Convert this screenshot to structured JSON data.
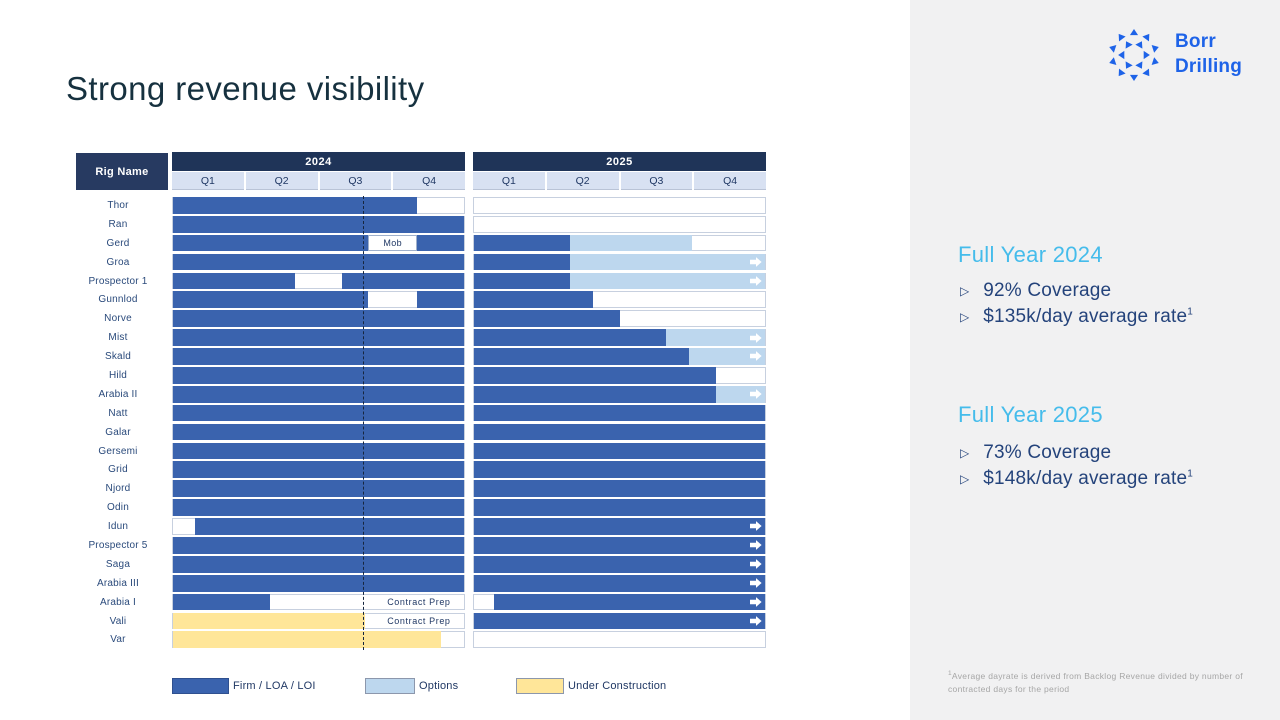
{
  "slide": {
    "title": "Strong revenue visibility"
  },
  "logo": {
    "brand_line1": "Borr",
    "brand_line2": "Drilling",
    "color": "#1E63E8"
  },
  "colors": {
    "firm": "#3A63AE",
    "option": "#BDD7EE",
    "under_construction": "#FFE699",
    "year_bar": "#1F3458",
    "quarter_bg": "#D8E1F2",
    "heading_blue": "#45BCEB",
    "bullet_navy": "#24437B",
    "panel_bg": "#F1F1F2"
  },
  "chart_data": {
    "type": "gantt",
    "rig_header": "Rig Name",
    "years": [
      {
        "label": "2024",
        "quarters": [
          "Q1",
          "Q2",
          "Q3",
          "Q4"
        ]
      },
      {
        "label": "2025",
        "quarters": [
          "Q1",
          "Q2",
          "Q3",
          "Q4"
        ]
      }
    ],
    "today_marker": {
      "year": "2024",
      "pct": 65
    },
    "legend": [
      {
        "label": "Firm / LOA / LOI",
        "type": "firm"
      },
      {
        "label": "Options",
        "type": "opt"
      },
      {
        "label": "Under Construction",
        "type": "uc"
      }
    ],
    "rows": [
      {
        "name": "Thor",
        "y2024": [
          {
            "t": "firm",
            "a": 0,
            "b": 84
          }
        ],
        "y2025": [],
        "arrow": false
      },
      {
        "name": "Ran",
        "y2024": [
          {
            "t": "firm",
            "a": 0,
            "b": 100
          }
        ],
        "y2025": [],
        "arrow": false
      },
      {
        "name": "Gerd",
        "y2024": [
          {
            "t": "firm",
            "a": 0,
            "b": 67
          },
          {
            "t": "box",
            "a": 67,
            "b": 84,
            "label": "Mob"
          },
          {
            "t": "firm",
            "a": 84,
            "b": 100
          }
        ],
        "y2025": [
          {
            "t": "firm",
            "a": 0,
            "b": 33
          },
          {
            "t": "opt",
            "a": 33,
            "b": 75
          }
        ],
        "arrow": false
      },
      {
        "name": "Groa",
        "y2024": [
          {
            "t": "firm",
            "a": 0,
            "b": 100
          }
        ],
        "y2025": [
          {
            "t": "firm",
            "a": 0,
            "b": 33
          },
          {
            "t": "opt",
            "a": 33,
            "b": 100
          }
        ],
        "arrow": true
      },
      {
        "name": "Prospector 1",
        "y2024": [
          {
            "t": "firm",
            "a": 0,
            "b": 42
          },
          {
            "t": "firm",
            "a": 58,
            "b": 100
          }
        ],
        "y2025": [
          {
            "t": "firm",
            "a": 0,
            "b": 33
          },
          {
            "t": "opt",
            "a": 33,
            "b": 100
          }
        ],
        "arrow": true
      },
      {
        "name": "Gunnlod",
        "y2024": [
          {
            "t": "firm",
            "a": 0,
            "b": 67
          },
          {
            "t": "firm",
            "a": 84,
            "b": 100
          }
        ],
        "y2025": [
          {
            "t": "firm",
            "a": 0,
            "b": 41
          }
        ],
        "arrow": false
      },
      {
        "name": "Norve",
        "y2024": [
          {
            "t": "firm",
            "a": 0,
            "b": 100
          }
        ],
        "y2025": [
          {
            "t": "firm",
            "a": 0,
            "b": 50
          }
        ],
        "arrow": false
      },
      {
        "name": "Mist",
        "y2024": [
          {
            "t": "firm",
            "a": 0,
            "b": 100
          }
        ],
        "y2025": [
          {
            "t": "firm",
            "a": 0,
            "b": 66
          },
          {
            "t": "opt",
            "a": 66,
            "b": 100
          }
        ],
        "arrow": true
      },
      {
        "name": "Skald",
        "y2024": [
          {
            "t": "firm",
            "a": 0,
            "b": 100
          }
        ],
        "y2025": [
          {
            "t": "firm",
            "a": 0,
            "b": 74
          },
          {
            "t": "opt",
            "a": 74,
            "b": 100
          }
        ],
        "arrow": true
      },
      {
        "name": "Hild",
        "y2024": [
          {
            "t": "firm",
            "a": 0,
            "b": 100
          }
        ],
        "y2025": [
          {
            "t": "firm",
            "a": 0,
            "b": 83
          }
        ],
        "arrow": false
      },
      {
        "name": "Arabia II",
        "y2024": [
          {
            "t": "firm",
            "a": 0,
            "b": 100
          }
        ],
        "y2025": [
          {
            "t": "firm",
            "a": 0,
            "b": 83
          },
          {
            "t": "opt",
            "a": 83,
            "b": 100
          }
        ],
        "arrow": true
      },
      {
        "name": "Natt",
        "y2024": [
          {
            "t": "firm",
            "a": 0,
            "b": 100
          }
        ],
        "y2025": [
          {
            "t": "firm",
            "a": 0,
            "b": 100
          }
        ],
        "arrow": false
      },
      {
        "name": "Galar",
        "y2024": [
          {
            "t": "firm",
            "a": 0,
            "b": 100
          }
        ],
        "y2025": [
          {
            "t": "firm",
            "a": 0,
            "b": 100
          }
        ],
        "arrow": false
      },
      {
        "name": "Gersemi",
        "y2024": [
          {
            "t": "firm",
            "a": 0,
            "b": 100
          }
        ],
        "y2025": [
          {
            "t": "firm",
            "a": 0,
            "b": 100
          }
        ],
        "arrow": false
      },
      {
        "name": "Grid",
        "y2024": [
          {
            "t": "firm",
            "a": 0,
            "b": 100
          }
        ],
        "y2025": [
          {
            "t": "firm",
            "a": 0,
            "b": 100
          }
        ],
        "arrow": false
      },
      {
        "name": "Njord",
        "y2024": [
          {
            "t": "firm",
            "a": 0,
            "b": 100
          }
        ],
        "y2025": [
          {
            "t": "firm",
            "a": 0,
            "b": 100
          }
        ],
        "arrow": false
      },
      {
        "name": "Odin",
        "y2024": [
          {
            "t": "firm",
            "a": 0,
            "b": 100
          }
        ],
        "y2025": [
          {
            "t": "firm",
            "a": 0,
            "b": 100
          }
        ],
        "arrow": false
      },
      {
        "name": "Idun",
        "y2024": [
          {
            "t": "firm",
            "a": 7.5,
            "b": 100
          }
        ],
        "y2025": [
          {
            "t": "firm",
            "a": 0,
            "b": 100
          }
        ],
        "arrow": true
      },
      {
        "name": "Prospector 5",
        "y2024": [
          {
            "t": "firm",
            "a": 0,
            "b": 100
          }
        ],
        "y2025": [
          {
            "t": "firm",
            "a": 0,
            "b": 100
          }
        ],
        "arrow": true
      },
      {
        "name": "Saga",
        "y2024": [
          {
            "t": "firm",
            "a": 0,
            "b": 100
          }
        ],
        "y2025": [
          {
            "t": "firm",
            "a": 0,
            "b": 100
          }
        ],
        "arrow": true
      },
      {
        "name": "Arabia III",
        "y2024": [
          {
            "t": "firm",
            "a": 0,
            "b": 100
          }
        ],
        "y2025": [
          {
            "t": "firm",
            "a": 0,
            "b": 100
          }
        ],
        "arrow": true
      },
      {
        "name": "Arabia I",
        "y2024": [
          {
            "t": "firm",
            "a": 0,
            "b": 33.5
          },
          {
            "t": "txt",
            "a": 70,
            "b": 99,
            "label": "Contract Prep"
          }
        ],
        "y2025": [
          {
            "t": "firm",
            "a": 7,
            "b": 100
          }
        ],
        "arrow": true
      },
      {
        "name": "Vali",
        "y2024": [
          {
            "t": "uc",
            "a": 0,
            "b": 66
          },
          {
            "t": "txt",
            "a": 70,
            "b": 99,
            "label": "Contract Prep"
          }
        ],
        "y2025": [
          {
            "t": "firm",
            "a": 0,
            "b": 100
          }
        ],
        "arrow": true
      },
      {
        "name": "Var",
        "y2024": [
          {
            "t": "uc",
            "a": 0,
            "b": 92
          }
        ],
        "y2025": [],
        "arrow": false
      }
    ]
  },
  "sidebar": {
    "sections": [
      {
        "heading": "Full Year 2024",
        "bullets": [
          {
            "text": "92% Coverage"
          },
          {
            "text": "$135k/day average rate",
            "sup": "1"
          }
        ]
      },
      {
        "heading": "Full Year 2025",
        "bullets": [
          {
            "text": "73% Coverage"
          },
          {
            "text": "$148k/day average rate",
            "sup": "1"
          }
        ]
      }
    ]
  },
  "footnote": {
    "sup": "1",
    "text": "Average dayrate is derived from Backlog Revenue divided by number of contracted days for the period"
  }
}
